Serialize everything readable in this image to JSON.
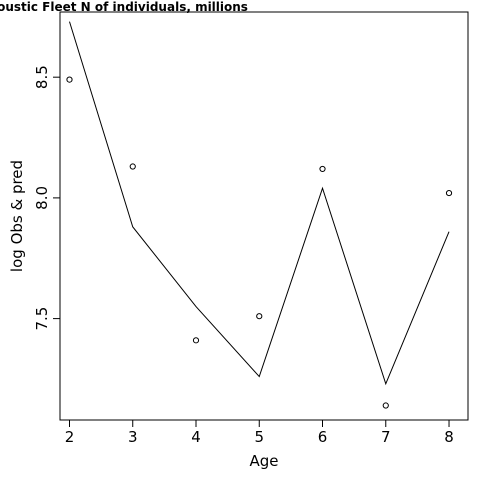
{
  "chart_data": {
    "type": "line",
    "title": "coustic Fleet   N of individuals, millions",
    "xlabel": "Age",
    "ylabel": "log Obs & pred",
    "xlim": [
      1.85,
      8.3
    ],
    "ylim": [
      7.08,
      8.77
    ],
    "x_ticks": [
      2,
      3,
      4,
      5,
      6,
      7,
      8
    ],
    "x_tick_labels": [
      "2",
      "3",
      "4",
      "5",
      "6",
      "7",
      "8"
    ],
    "y_ticks": [
      7.5,
      8.0,
      8.5
    ],
    "y_tick_labels": [
      "7.5",
      "8.0",
      "8.5"
    ],
    "grid": false,
    "legend": "none",
    "x": [
      2,
      3,
      4,
      5,
      6,
      7,
      8
    ],
    "series": [
      {
        "style": "points",
        "values": [
          8.49,
          8.13,
          7.41,
          7.51,
          8.12,
          7.14,
          8.02
        ]
      },
      {
        "style": "line",
        "values": [
          8.73,
          7.88,
          7.55,
          7.26,
          8.04,
          7.23,
          7.86
        ]
      }
    ]
  }
}
